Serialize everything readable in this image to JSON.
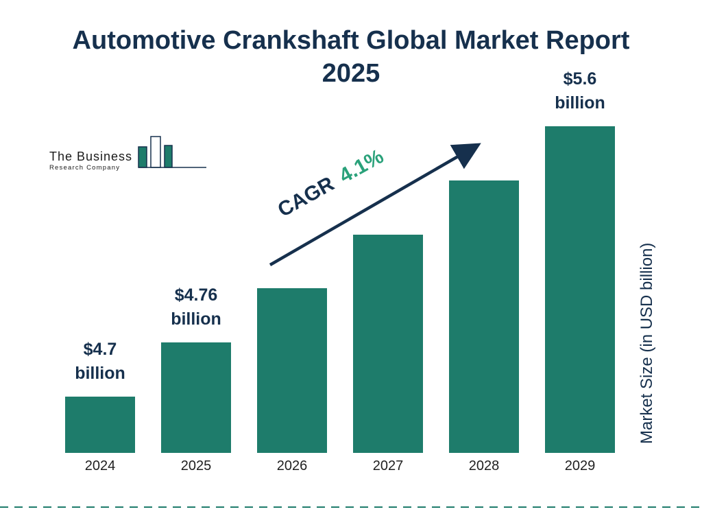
{
  "page": {
    "title_line1": "Automotive Crankshaft Global Market Report",
    "title_line2": "2025"
  },
  "logo": {
    "line1": "The Business",
    "line2": "Research Company"
  },
  "chart_data": {
    "type": "bar",
    "title": "Automotive Crankshaft Global Market Report 2025",
    "categories": [
      "2024",
      "2025",
      "2026",
      "2027",
      "2028",
      "2029"
    ],
    "values": [
      4.7,
      4.76,
      4.96,
      5.16,
      5.37,
      5.6
    ],
    "unit": "USD billion",
    "bar_color": "#1E7C6B",
    "value_labels": {
      "2024": [
        "$4.7",
        "billion"
      ],
      "2025": [
        "$4.76",
        "billion"
      ],
      "2029": [
        "$5.6",
        "billion"
      ]
    },
    "annotation": {
      "prefix": "CAGR",
      "value": "4.1%"
    },
    "ylabel": "Market Size (in USD billion)",
    "xlabel": "",
    "grid": false,
    "legend": "none"
  }
}
